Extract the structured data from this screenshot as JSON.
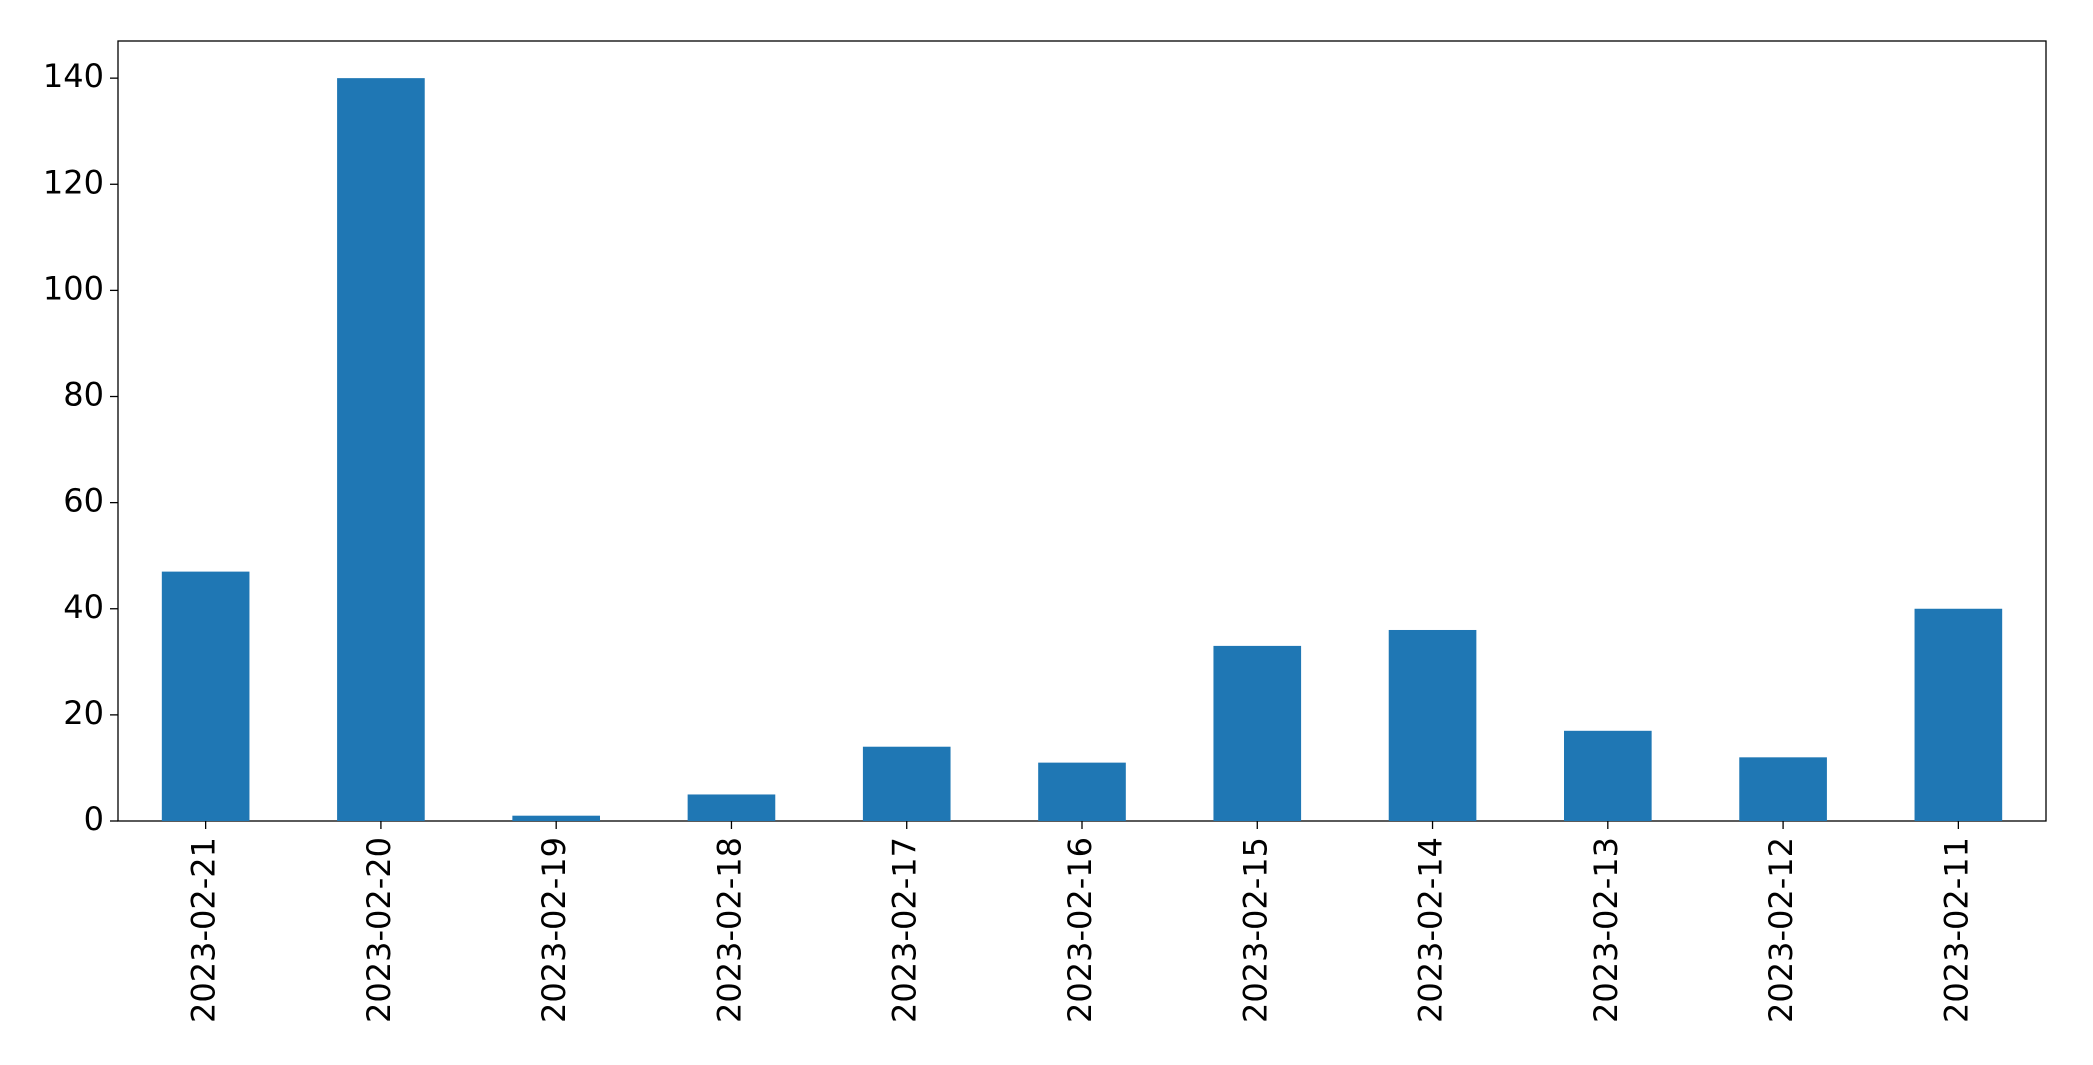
{
  "chart_data": {
    "type": "bar",
    "categories": [
      "2023-02-21",
      "2023-02-20",
      "2023-02-19",
      "2023-02-18",
      "2023-02-17",
      "2023-02-16",
      "2023-02-15",
      "2023-02-14",
      "2023-02-13",
      "2023-02-12",
      "2023-02-11"
    ],
    "values": [
      47,
      140,
      1,
      5,
      14,
      11,
      33,
      36,
      17,
      12,
      40
    ],
    "color": "#1f77b4",
    "ylim": [
      0,
      147
    ],
    "yticks": [
      0,
      20,
      40,
      60,
      80,
      100,
      120,
      140
    ],
    "grid": false
  }
}
